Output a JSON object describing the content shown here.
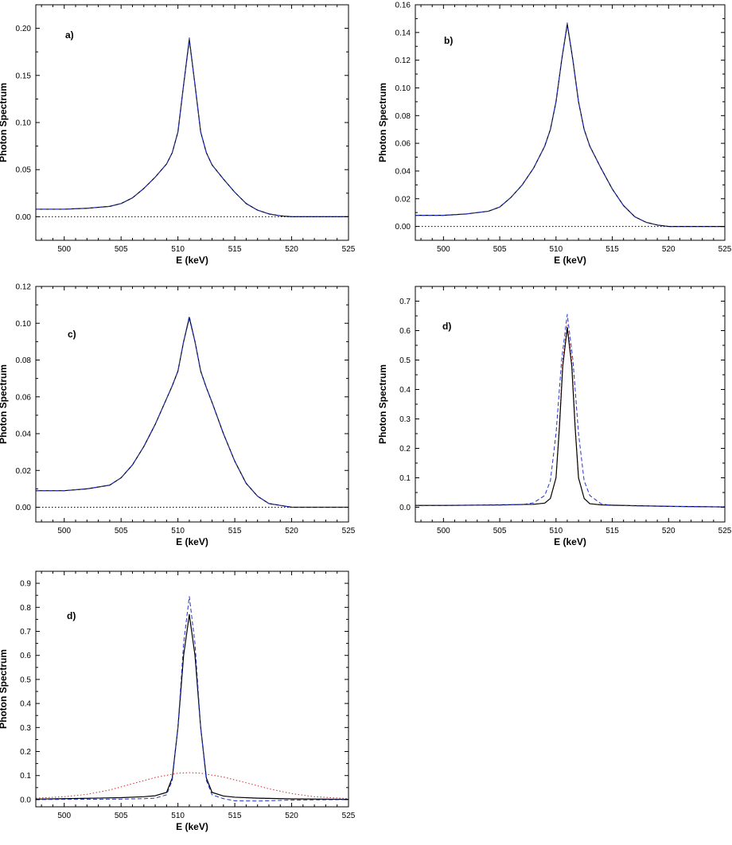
{
  "colors": {
    "solid": "#000000",
    "dashed": "#2233cc",
    "dotted": "#dd2222"
  },
  "chart_data": [
    {
      "type": "line",
      "panel_label": "a)",
      "xlabel": "E (keV)",
      "ylabel": "Photon Spectrum",
      "xlim": [
        497.5,
        525
      ],
      "ylim": [
        -0.025,
        0.225
      ],
      "xticks": [
        500,
        505,
        510,
        515,
        520,
        525
      ],
      "yticks": [
        0.0,
        0.05,
        0.1,
        0.15,
        0.2
      ],
      "ytick_labels": [
        "0.00",
        "0.05",
        "0.10",
        "0.15",
        "0.20"
      ],
      "grid": false,
      "series": [
        {
          "style": "solid",
          "color": "#000000",
          "x": [
            497.5,
            500,
            502,
            504,
            505,
            506,
            507,
            508,
            509,
            509.5,
            510,
            510.5,
            511,
            511.5,
            512,
            512.5,
            513,
            514,
            515,
            516,
            517,
            518,
            519,
            520,
            522,
            525
          ],
          "y": [
            0.008,
            0.008,
            0.009,
            0.011,
            0.014,
            0.02,
            0.03,
            0.042,
            0.056,
            0.068,
            0.09,
            0.14,
            0.188,
            0.14,
            0.09,
            0.068,
            0.055,
            0.04,
            0.026,
            0.014,
            0.007,
            0.003,
            0.001,
            0.0,
            0.0,
            0.0
          ]
        },
        {
          "style": "dashed",
          "color": "#2233cc",
          "x": [
            497.5,
            500,
            502,
            504,
            505,
            506,
            507,
            508,
            509,
            509.5,
            510,
            510.5,
            511,
            511.5,
            512,
            512.5,
            513,
            514,
            515,
            516,
            517,
            518,
            519,
            520,
            522,
            525
          ],
          "y": [
            0.008,
            0.008,
            0.009,
            0.011,
            0.014,
            0.02,
            0.03,
            0.042,
            0.056,
            0.068,
            0.09,
            0.14,
            0.19,
            0.14,
            0.09,
            0.068,
            0.055,
            0.04,
            0.026,
            0.014,
            0.007,
            0.003,
            0.001,
            0.0,
            0.0,
            0.0
          ]
        },
        {
          "style": "dotted",
          "color": "#000000",
          "x": [
            497.5,
            525
          ],
          "y": [
            0.0,
            0.0
          ]
        }
      ]
    },
    {
      "type": "line",
      "panel_label": "b)",
      "xlabel": "E (keV)",
      "ylabel": "Photon Spectrum",
      "xlim": [
        497.5,
        525
      ],
      "ylim": [
        -0.01,
        0.16
      ],
      "xticks": [
        500,
        505,
        510,
        515,
        520,
        525
      ],
      "yticks": [
        0.0,
        0.02,
        0.04,
        0.06,
        0.08,
        0.1,
        0.12,
        0.14,
        0.16
      ],
      "ytick_labels": [
        "0.00",
        "0.02",
        "0.04",
        "0.06",
        "0.08",
        "0.10",
        "0.12",
        "0.14",
        "0.16"
      ],
      "grid": false,
      "series": [
        {
          "style": "solid",
          "color": "#000000",
          "x": [
            497.5,
            500,
            502,
            504,
            505,
            506,
            507,
            508,
            509,
            509.5,
            510,
            510.5,
            511,
            511.5,
            512,
            512.5,
            513,
            514,
            515,
            516,
            517,
            518,
            519,
            520,
            522,
            525
          ],
          "y": [
            0.008,
            0.008,
            0.009,
            0.011,
            0.014,
            0.021,
            0.03,
            0.042,
            0.058,
            0.07,
            0.09,
            0.12,
            0.146,
            0.12,
            0.09,
            0.07,
            0.058,
            0.042,
            0.027,
            0.015,
            0.007,
            0.003,
            0.001,
            0.0,
            0.0,
            0.0
          ]
        },
        {
          "style": "dashed",
          "color": "#2233cc",
          "x": [
            497.5,
            500,
            502,
            504,
            505,
            506,
            507,
            508,
            509,
            509.5,
            510,
            510.5,
            511,
            511.5,
            512,
            512.5,
            513,
            514,
            515,
            516,
            517,
            518,
            519,
            520,
            522,
            525
          ],
          "y": [
            0.008,
            0.008,
            0.009,
            0.011,
            0.014,
            0.021,
            0.03,
            0.042,
            0.058,
            0.07,
            0.09,
            0.12,
            0.147,
            0.12,
            0.09,
            0.07,
            0.058,
            0.042,
            0.027,
            0.015,
            0.007,
            0.003,
            0.001,
            0.0,
            0.0,
            0.0
          ]
        },
        {
          "style": "dotted",
          "color": "#000000",
          "x": [
            497.5,
            525
          ],
          "y": [
            0.0,
            0.0
          ]
        }
      ]
    },
    {
      "type": "line",
      "panel_label": "c)",
      "xlabel": "E (keV)",
      "ylabel": "Photon Spectrum",
      "xlim": [
        497.5,
        525
      ],
      "ylim": [
        -0.008,
        0.12
      ],
      "xticks": [
        500,
        505,
        510,
        515,
        520,
        525
      ],
      "yticks": [
        0.0,
        0.02,
        0.04,
        0.06,
        0.08,
        0.1,
        0.12
      ],
      "ytick_labels": [
        "0.00",
        "0.02",
        "0.04",
        "0.06",
        "0.08",
        "0.10",
        "0.12"
      ],
      "grid": false,
      "series": [
        {
          "style": "solid",
          "color": "#000000",
          "x": [
            497.5,
            500,
            502,
            504,
            505,
            506,
            507,
            508,
            509,
            509.5,
            510,
            510.5,
            511,
            511.5,
            512,
            512.5,
            513,
            514,
            515,
            516,
            517,
            518,
            519,
            520,
            522,
            525
          ],
          "y": [
            0.009,
            0.009,
            0.01,
            0.012,
            0.016,
            0.023,
            0.033,
            0.045,
            0.059,
            0.066,
            0.074,
            0.09,
            0.103,
            0.09,
            0.074,
            0.065,
            0.057,
            0.04,
            0.025,
            0.013,
            0.006,
            0.002,
            0.001,
            0.0,
            0.0,
            0.0
          ]
        },
        {
          "style": "dashed",
          "color": "#2233cc",
          "x": [
            497.5,
            500,
            502,
            504,
            505,
            506,
            507,
            508,
            509,
            509.5,
            510,
            510.5,
            511,
            511.5,
            512,
            512.5,
            513,
            514,
            515,
            516,
            517,
            518,
            519,
            520,
            522,
            525
          ],
          "y": [
            0.009,
            0.009,
            0.01,
            0.012,
            0.016,
            0.023,
            0.033,
            0.045,
            0.059,
            0.066,
            0.074,
            0.09,
            0.104,
            0.09,
            0.074,
            0.065,
            0.057,
            0.04,
            0.025,
            0.013,
            0.006,
            0.002,
            0.001,
            0.0,
            0.0,
            0.0
          ]
        },
        {
          "style": "dotted",
          "color": "#000000",
          "x": [
            497.5,
            525
          ],
          "y": [
            0.0,
            0.0
          ]
        }
      ]
    },
    {
      "type": "line",
      "panel_label": "d)",
      "xlabel": "E (keV)",
      "ylabel": "Photon Spectrum",
      "xlim": [
        497.5,
        525
      ],
      "ylim": [
        -0.05,
        0.75
      ],
      "xticks": [
        500,
        505,
        510,
        515,
        520,
        525
      ],
      "yticks": [
        0.0,
        0.1,
        0.2,
        0.3,
        0.4,
        0.5,
        0.6,
        0.7
      ],
      "ytick_labels": [
        "0.0",
        "0.1",
        "0.2",
        "0.3",
        "0.4",
        "0.5",
        "0.6",
        "0.7"
      ],
      "grid": false,
      "series": [
        {
          "style": "dotted",
          "color": "#dd2222",
          "x": [
            497.5,
            500,
            505,
            508,
            509,
            509.5,
            510,
            510.3,
            510.6,
            511,
            511.4,
            511.7,
            512,
            512.5,
            513,
            514,
            516,
            520,
            525
          ],
          "y": [
            0.006,
            0.006,
            0.008,
            0.01,
            0.014,
            0.03,
            0.1,
            0.28,
            0.5,
            0.62,
            0.5,
            0.28,
            0.1,
            0.03,
            0.012,
            0.008,
            0.006,
            0.003,
            0.001
          ]
        },
        {
          "style": "solid",
          "color": "#000000",
          "x": [
            497.5,
            500,
            505,
            508,
            509,
            509.5,
            510,
            510.3,
            510.6,
            511,
            511.4,
            511.7,
            512,
            512.5,
            513,
            514,
            516,
            520,
            525
          ],
          "y": [
            0.006,
            0.006,
            0.008,
            0.01,
            0.014,
            0.03,
            0.1,
            0.27,
            0.48,
            0.61,
            0.48,
            0.27,
            0.1,
            0.03,
            0.012,
            0.008,
            0.006,
            0.003,
            0.001
          ]
        },
        {
          "style": "dashed",
          "color": "#2233cc",
          "x": [
            497.5,
            500,
            505,
            507,
            508,
            509,
            509.5,
            510,
            510.5,
            511,
            511.5,
            512,
            512.5,
            513,
            514,
            515,
            520,
            525
          ],
          "y": [
            0.005,
            0.006,
            0.007,
            0.009,
            0.015,
            0.04,
            0.09,
            0.25,
            0.5,
            0.655,
            0.5,
            0.25,
            0.09,
            0.04,
            0.012,
            0.006,
            0.003,
            0.001
          ]
        }
      ]
    },
    {
      "type": "line",
      "panel_label": "d)",
      "xlabel": "E (keV)",
      "ylabel": "Photon Spectrum",
      "xlim": [
        497.5,
        525
      ],
      "ylim": [
        -0.03,
        0.95
      ],
      "xticks": [
        500,
        505,
        510,
        515,
        520,
        525
      ],
      "yticks": [
        0.0,
        0.1,
        0.2,
        0.3,
        0.4,
        0.5,
        0.6,
        0.7,
        0.8,
        0.9
      ],
      "ytick_labels": [
        "0.0",
        "0.1",
        "0.2",
        "0.3",
        "0.4",
        "0.5",
        "0.6",
        "0.7",
        "0.8",
        "0.9"
      ],
      "grid": false,
      "series": [
        {
          "style": "dotted",
          "color": "#dd2222",
          "x": [
            497.5,
            500,
            502,
            504,
            506,
            508,
            510,
            511,
            512,
            514,
            516,
            518,
            520,
            522,
            525
          ],
          "y": [
            0.006,
            0.012,
            0.022,
            0.04,
            0.066,
            0.092,
            0.11,
            0.112,
            0.11,
            0.094,
            0.07,
            0.045,
            0.025,
            0.012,
            0.004
          ]
        },
        {
          "style": "solid",
          "color": "#000000",
          "x": [
            497.5,
            500,
            505,
            507,
            508,
            509,
            509.5,
            510,
            510.5,
            511,
            511.5,
            512,
            512.5,
            513,
            514,
            515,
            517,
            520,
            525
          ],
          "y": [
            0.002,
            0.004,
            0.008,
            0.012,
            0.016,
            0.03,
            0.09,
            0.3,
            0.6,
            0.77,
            0.6,
            0.3,
            0.09,
            0.03,
            0.015,
            0.01,
            0.006,
            0.003,
            0.001
          ]
        },
        {
          "style": "dashed",
          "color": "#2233cc",
          "x": [
            497.5,
            500,
            505,
            507,
            508,
            509,
            509.5,
            510,
            510.5,
            511,
            511.5,
            512,
            512.5,
            513,
            514,
            515,
            517,
            520,
            525
          ],
          "y": [
            0.0,
            0.001,
            0.002,
            0.004,
            0.006,
            0.02,
            0.08,
            0.3,
            0.65,
            0.845,
            0.65,
            0.3,
            0.08,
            0.02,
            0.004,
            -0.005,
            -0.006,
            -0.002,
            0.0
          ]
        }
      ]
    }
  ]
}
